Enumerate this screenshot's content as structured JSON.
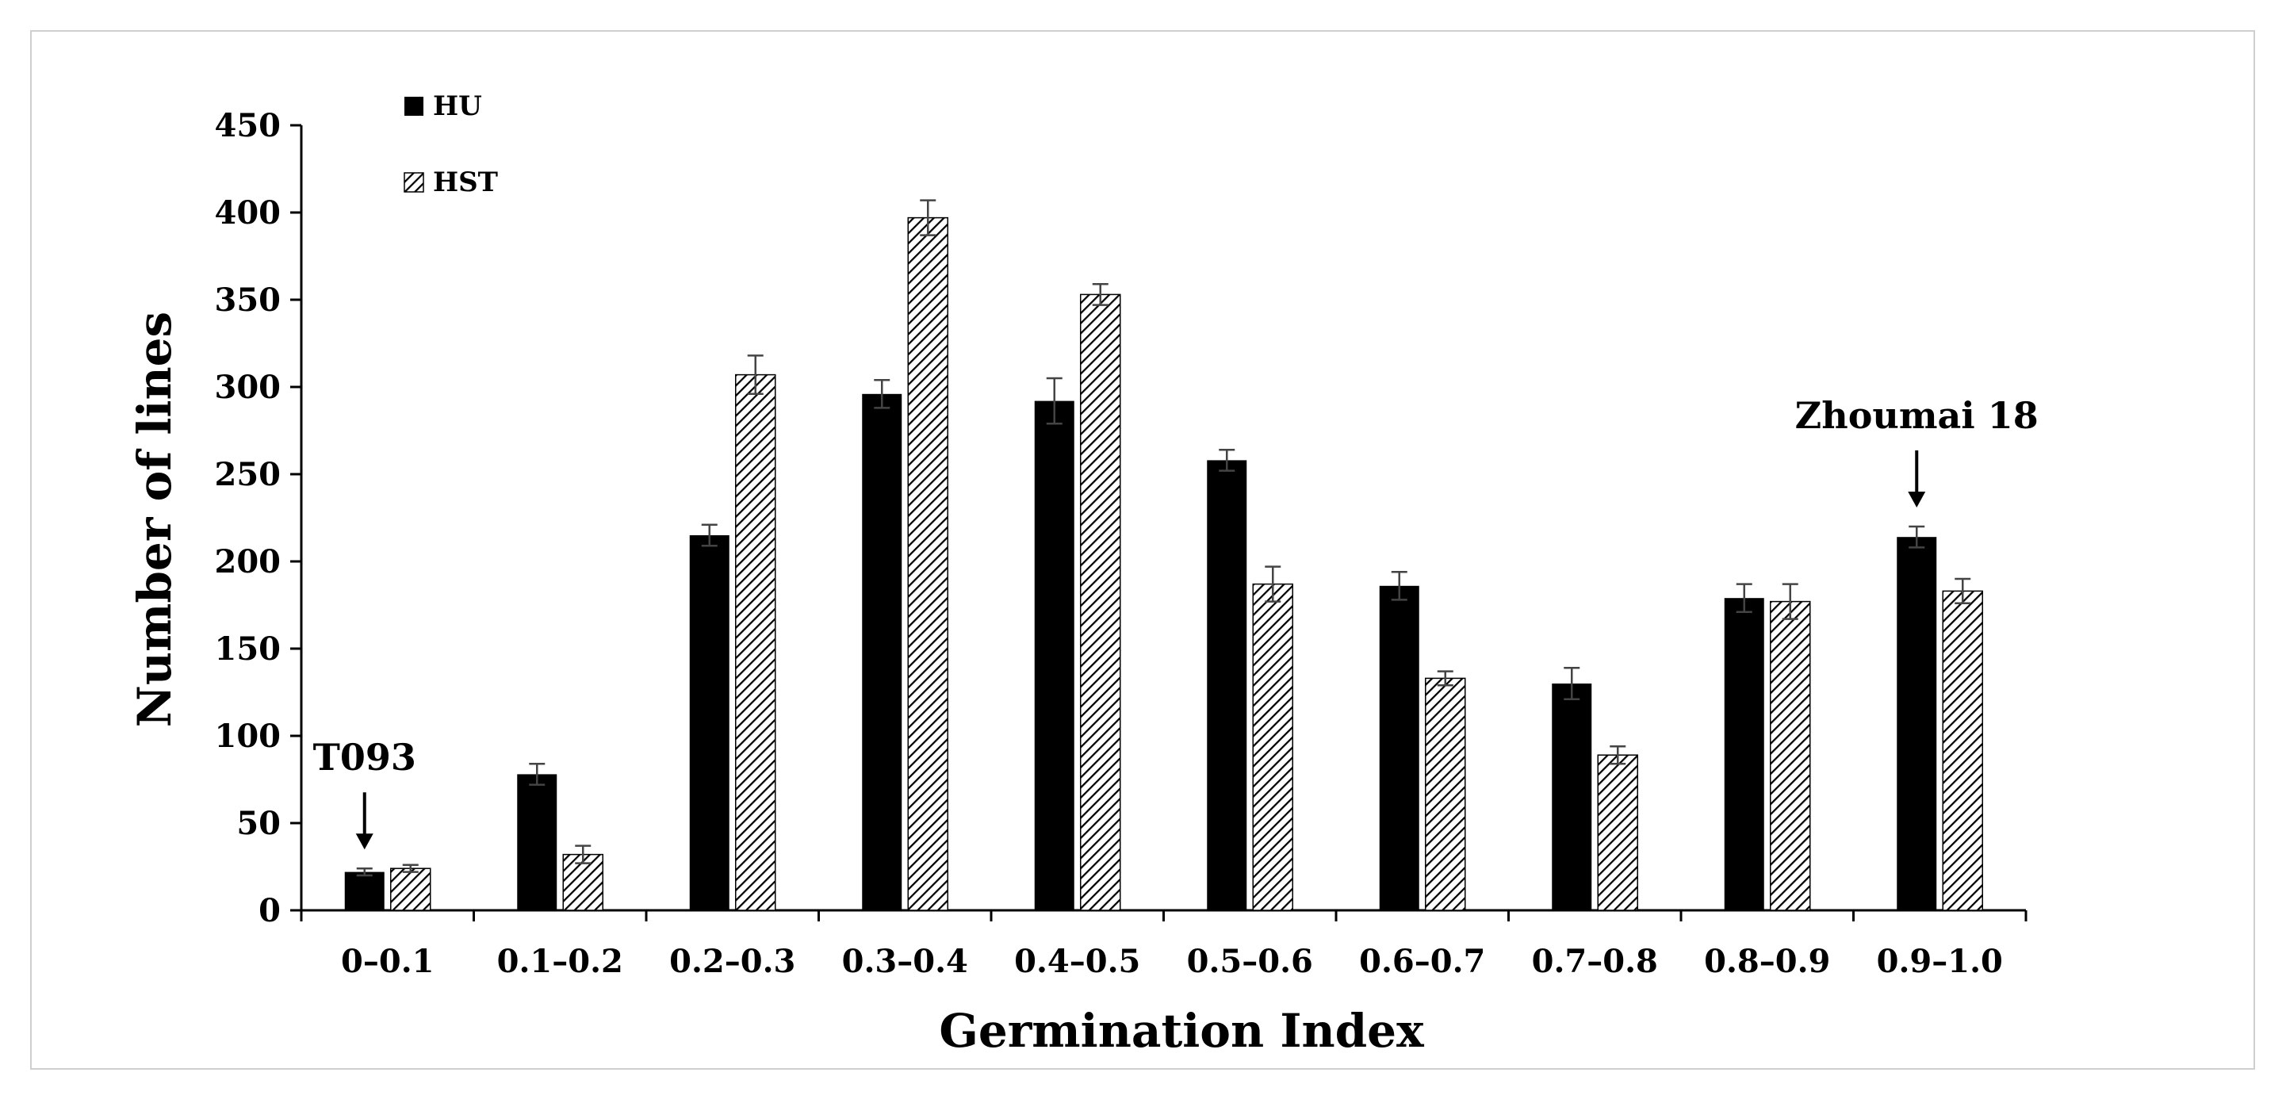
{
  "chart_data": {
    "type": "bar",
    "title": "",
    "xlabel": "Germination Index",
    "ylabel": "Number of lines",
    "ylim": [
      0,
      450
    ],
    "yticks": [
      0,
      50,
      100,
      150,
      200,
      250,
      300,
      350,
      400,
      450
    ],
    "grid": false,
    "legend_position": "top-left",
    "categories": [
      "0–0.1",
      "0.1–0.2",
      "0.2–0.3",
      "0.3–0.4",
      "0.4–0.5",
      "0.5–0.6",
      "0.6–0.7",
      "0.7–0.8",
      "0.8–0.9",
      "0.9–1.0"
    ],
    "series": [
      {
        "name": "HU",
        "style": "solid",
        "color": "#000000",
        "values": [
          22,
          78,
          215,
          296,
          292,
          258,
          186,
          130,
          179,
          214
        ],
        "errors": [
          2,
          6,
          6,
          8,
          13,
          6,
          8,
          9,
          8,
          6
        ]
      },
      {
        "name": "HST",
        "style": "hatched",
        "color": "#000000",
        "values": [
          24,
          32,
          307,
          397,
          353,
          187,
          133,
          89,
          177,
          183
        ],
        "errors": [
          2,
          5,
          11,
          10,
          6,
          10,
          4,
          5,
          10,
          7
        ]
      }
    ],
    "annotations": [
      {
        "text": "T093",
        "category_index": 0,
        "series_index": 0
      },
      {
        "text": "Zhoumai 18",
        "category_index": 9,
        "series_index": 0
      }
    ]
  }
}
